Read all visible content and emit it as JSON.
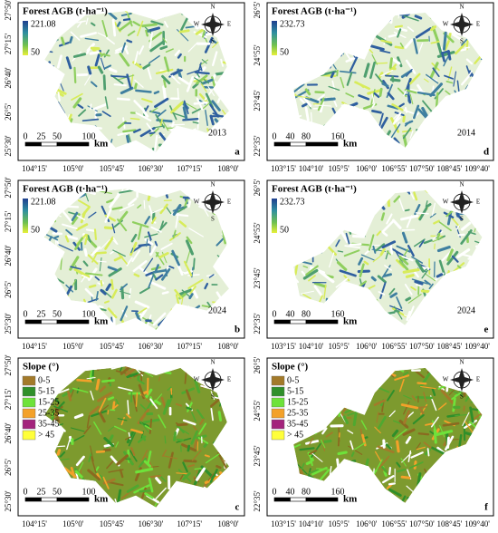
{
  "panels": [
    {
      "letter": "a",
      "year": "2013",
      "legend": {
        "title": "Forest AGB (t·ha⁻¹)",
        "max": 221.08,
        "min": 50
      },
      "compass": [
        "N",
        "S",
        "W",
        "E"
      ],
      "scale": {
        "ticks": [
          0,
          25,
          50,
          100
        ],
        "unit": "km"
      },
      "lat_ticks": [
        "27°50'",
        "27°15'",
        "26°40'",
        "26°5'",
        "25°30'"
      ],
      "lon_ticks": [
        "104°15'",
        "105°0'",
        "105°45'",
        "106°30'",
        "107°15'",
        "108°0'"
      ]
    },
    {
      "letter": "d",
      "year": "2014",
      "legend": {
        "title": "Forest AGB (t·ha⁻¹)",
        "max": 232.73,
        "min": 50
      },
      "compass": [
        "N",
        "S",
        "W",
        "E"
      ],
      "scale": {
        "ticks": [
          0,
          40,
          80,
          160
        ],
        "unit": "km"
      },
      "lat_ticks": [
        "26°5'",
        "24°55'",
        "23°45'",
        "22°35'"
      ],
      "lon_ticks": [
        "103°15'",
        "104°10'",
        "105°5'",
        "106°0'",
        "106°55'",
        "107°50'",
        "108°45'",
        "109°40'"
      ]
    },
    {
      "letter": "b",
      "year": "2024",
      "legend": {
        "title": "Forest AGB (t·ha⁻¹)",
        "max": 221.08,
        "min": 50
      },
      "compass": [
        "N",
        "S",
        "W",
        "E"
      ],
      "scale": {
        "ticks": [
          0,
          25,
          50,
          100
        ],
        "unit": "km"
      },
      "lat_ticks": [
        "27°50'",
        "27°15'",
        "26°40'",
        "26°5'",
        "25°30'"
      ],
      "lon_ticks": [
        "104°15'",
        "105°0'",
        "105°45'",
        "106°30'",
        "107°15'",
        "108°0'"
      ]
    },
    {
      "letter": "e",
      "year": "2024",
      "legend": {
        "title": "Forest AGB (t·ha⁻¹)",
        "max": 232.73,
        "min": 50
      },
      "compass": [
        "N",
        "S",
        "W",
        "E"
      ],
      "scale": {
        "ticks": [
          0,
          40,
          80,
          160
        ],
        "unit": "km"
      },
      "lat_ticks": [
        "26°5'",
        "24°55'",
        "23°45'",
        "22°35'"
      ],
      "lon_ticks": [
        "103°15'",
        "104°10'",
        "105°5'",
        "106°0'",
        "106°55'",
        "107°50'",
        "108°45'",
        "109°40'"
      ]
    },
    {
      "letter": "c",
      "legend": {
        "title": "Slope (°)",
        "classes": [
          {
            "label": "0-5",
            "color": "#a37a2a"
          },
          {
            "label": "5-15",
            "color": "#2f8f2a"
          },
          {
            "label": "15-25",
            "color": "#6ee23a"
          },
          {
            "label": "25-35",
            "color": "#f3a12a"
          },
          {
            "label": "35-45",
            "color": "#a3237c"
          },
          {
            "label": "> 45",
            "color": "#ffff3a"
          }
        ]
      },
      "compass": [
        "N",
        "S",
        "W",
        "E"
      ],
      "scale": {
        "ticks": [
          0,
          25,
          50,
          100
        ],
        "unit": "km"
      },
      "lat_ticks": [
        "27°50'",
        "27°15'",
        "26°40'",
        "26°5'",
        "25°30'"
      ],
      "lon_ticks": [
        "104°15'",
        "105°0'",
        "105°45'",
        "106°30'",
        "107°15'",
        "108°0'"
      ]
    },
    {
      "letter": "f",
      "legend": {
        "title": "Slope (°)",
        "classes": [
          {
            "label": "0-5",
            "color": "#a37a2a"
          },
          {
            "label": "5-15",
            "color": "#2f8f2a"
          },
          {
            "label": "15-25",
            "color": "#6ee23a"
          },
          {
            "label": "25-35",
            "color": "#f3a12a"
          },
          {
            "label": "35-45",
            "color": "#a3237c"
          },
          {
            "label": "> 45",
            "color": "#ffff3a"
          }
        ]
      },
      "compass": [
        "N",
        "S",
        "W",
        "E"
      ],
      "scale": {
        "ticks": [
          0,
          40,
          80,
          160
        ],
        "unit": "km"
      },
      "lat_ticks": [
        "26°5'",
        "24°55'",
        "23°45'",
        "22°35'"
      ],
      "lon_ticks": [
        "103°15'",
        "104°10'",
        "105°5'",
        "106°0'",
        "106°55'",
        "107°50'",
        "108°45'",
        "109°40'"
      ]
    }
  ]
}
